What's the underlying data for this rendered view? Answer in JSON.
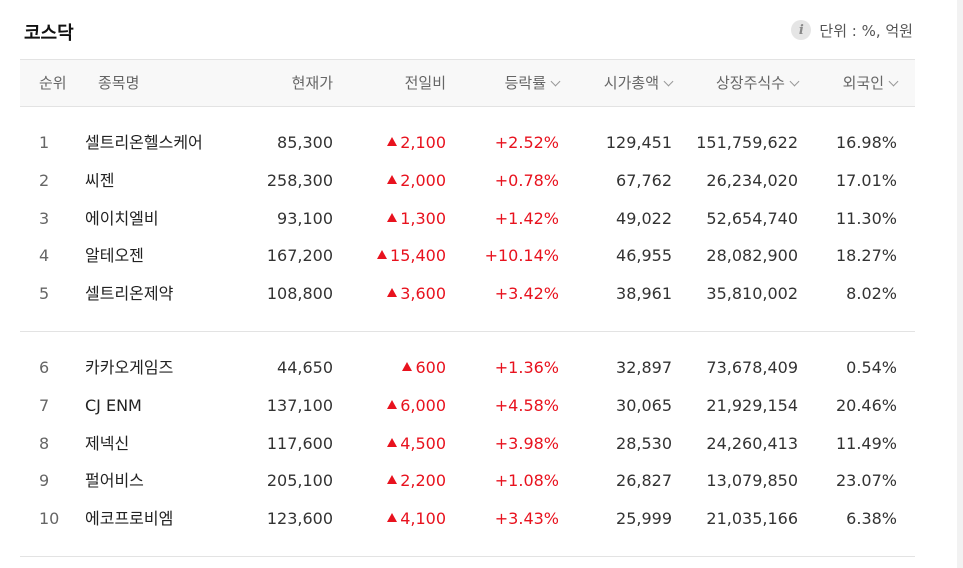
{
  "panel": {
    "title": "코스닥",
    "unit_label": "단위 : %, 억원",
    "info_icon_glyph": "i"
  },
  "columns": {
    "rank": "순위",
    "name": "종목명",
    "price": "현재가",
    "change": "전일비",
    "rate": "등락률",
    "market_cap": "시가총액",
    "shares": "상장주식수",
    "foreign": "외국인"
  },
  "colors": {
    "up": "#e8121e",
    "text": "#333333",
    "header_bg": "#f8f8f8",
    "border": "#e3e3e3"
  },
  "groups": [
    {
      "rows": [
        {
          "rank": "1",
          "name": "셀트리온헬스케어",
          "price": "85,300",
          "change": "2,100",
          "direction": "up",
          "rate": "+2.52%",
          "market_cap": "129,451",
          "shares": "151,759,622",
          "foreign": "16.98%"
        },
        {
          "rank": "2",
          "name": "씨젠",
          "price": "258,300",
          "change": "2,000",
          "direction": "up",
          "rate": "+0.78%",
          "market_cap": "67,762",
          "shares": "26,234,020",
          "foreign": "17.01%"
        },
        {
          "rank": "3",
          "name": "에이치엘비",
          "price": "93,100",
          "change": "1,300",
          "direction": "up",
          "rate": "+1.42%",
          "market_cap": "49,022",
          "shares": "52,654,740",
          "foreign": "11.30%"
        },
        {
          "rank": "4",
          "name": "알테오젠",
          "price": "167,200",
          "change": "15,400",
          "direction": "up",
          "rate": "+10.14%",
          "market_cap": "46,955",
          "shares": "28,082,900",
          "foreign": "18.27%"
        },
        {
          "rank": "5",
          "name": "셀트리온제약",
          "price": "108,800",
          "change": "3,600",
          "direction": "up",
          "rate": "+3.42%",
          "market_cap": "38,961",
          "shares": "35,810,002",
          "foreign": "8.02%"
        }
      ]
    },
    {
      "rows": [
        {
          "rank": "6",
          "name": "카카오게임즈",
          "price": "44,650",
          "change": "600",
          "direction": "up",
          "rate": "+1.36%",
          "market_cap": "32,897",
          "shares": "73,678,409",
          "foreign": "0.54%"
        },
        {
          "rank": "7",
          "name": "CJ ENM",
          "price": "137,100",
          "change": "6,000",
          "direction": "up",
          "rate": "+4.58%",
          "market_cap": "30,065",
          "shares": "21,929,154",
          "foreign": "20.46%"
        },
        {
          "rank": "8",
          "name": "제넥신",
          "price": "117,600",
          "change": "4,500",
          "direction": "up",
          "rate": "+3.98%",
          "market_cap": "28,530",
          "shares": "24,260,413",
          "foreign": "11.49%"
        },
        {
          "rank": "9",
          "name": "펄어비스",
          "price": "205,100",
          "change": "2,200",
          "direction": "up",
          "rate": "+1.08%",
          "market_cap": "26,827",
          "shares": "13,079,850",
          "foreign": "23.07%"
        },
        {
          "rank": "10",
          "name": "에코프로비엠",
          "price": "123,600",
          "change": "4,100",
          "direction": "up",
          "rate": "+3.43%",
          "market_cap": "25,999",
          "shares": "21,035,166",
          "foreign": "6.38%"
        }
      ]
    }
  ]
}
